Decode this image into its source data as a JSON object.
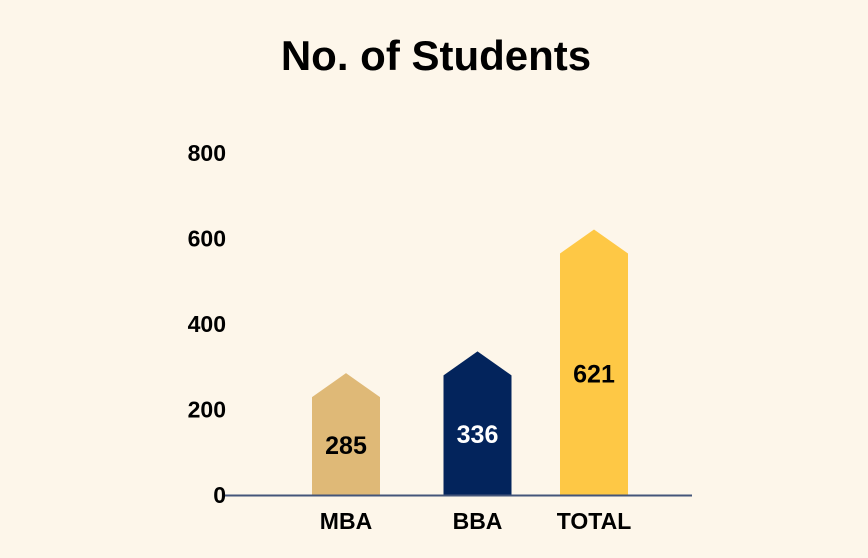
{
  "chart_data": {
    "type": "bar",
    "title": "No. of Students",
    "categories": [
      "MBA",
      "BBA",
      "TOTAL"
    ],
    "values": [
      285,
      336,
      621
    ],
    "colors": [
      "#dfb977",
      "#03245c",
      "#fec845"
    ],
    "label_colors": [
      "#000000",
      "#ffffff",
      "#000000"
    ],
    "xlabel": "",
    "ylabel": "",
    "ylim": [
      0,
      800
    ],
    "yticks": [
      "0",
      "200",
      "400",
      "600",
      "800"
    ],
    "grid": false,
    "legend": "none",
    "bar_shape": "arrow-up"
  }
}
